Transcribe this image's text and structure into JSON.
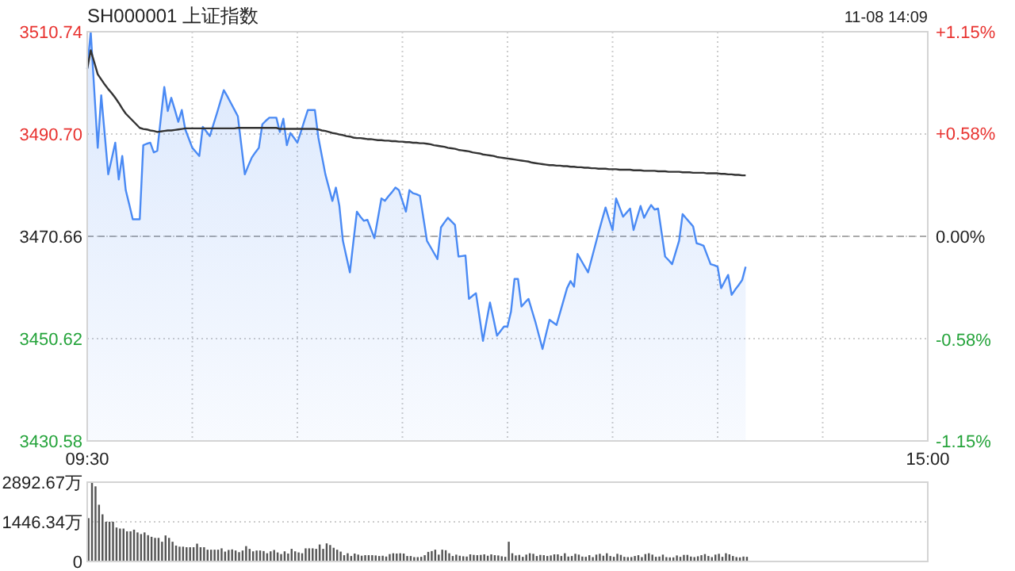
{
  "chart_data": [
    {
      "type": "area",
      "title": "SH000001 上证指数",
      "subtitle": "11-08 14:09",
      "grid": true,
      "categories": [
        "09:30",
        null,
        null,
        null,
        null,
        null,
        null,
        null,
        null,
        null,
        null,
        null,
        null,
        null,
        null,
        null,
        null,
        null,
        null,
        null,
        null,
        null,
        null,
        null,
        null,
        null,
        null,
        null,
        null,
        null,
        null,
        null,
        null,
        null,
        null,
        null,
        null,
        null,
        null,
        null,
        null,
        null,
        null,
        null,
        null,
        null,
        null,
        null,
        null,
        null,
        null,
        null,
        null,
        null,
        null,
        null,
        null,
        null,
        null,
        null,
        null,
        null,
        null,
        null,
        null,
        null,
        null,
        null,
        null,
        null,
        null,
        null,
        null,
        null,
        null,
        null,
        null,
        null,
        null,
        null,
        null,
        null,
        null,
        null,
        null,
        null,
        null,
        null,
        null,
        null,
        null,
        null,
        null,
        null,
        null,
        null,
        null,
        null,
        null,
        null,
        null,
        null,
        null,
        null,
        null,
        null,
        null,
        null,
        null,
        null,
        null,
        null,
        null,
        null,
        null,
        null,
        null,
        null,
        null,
        null,
        null,
        null,
        null,
        null,
        null,
        null,
        null,
        null,
        null,
        null,
        null,
        null,
        null,
        null,
        null,
        null,
        null,
        null,
        null,
        null,
        null,
        null,
        null,
        null,
        null,
        null,
        null,
        null,
        null,
        null,
        null,
        null,
        null,
        null,
        null,
        null,
        null,
        null,
        null,
        null,
        null,
        null,
        null,
        null,
        null,
        null,
        null,
        null,
        null,
        null,
        null,
        null,
        null,
        null,
        null,
        null,
        null,
        null,
        null,
        null,
        null,
        null,
        null,
        null,
        null,
        null,
        null,
        null,
        null,
        null,
        null,
        null,
        null,
        null,
        null,
        null,
        null,
        null,
        null,
        null,
        null,
        null,
        null,
        null,
        null,
        null,
        null,
        null,
        null,
        null,
        null,
        null,
        null,
        null,
        null,
        null,
        null,
        null,
        null,
        null,
        null,
        null,
        null,
        null,
        null,
        null,
        null,
        null,
        null,
        null,
        null,
        null,
        null,
        null,
        null,
        null,
        null,
        null,
        null,
        null,
        "15:00"
      ],
      "ylim": [
        3430.58,
        3510.74
      ],
      "yticks": [
        {
          "value": 3430.58,
          "label": "3430.58"
        },
        {
          "value": 3450.62,
          "label": "3450.62"
        },
        {
          "value": 3470.66,
          "label": "3470.66"
        },
        {
          "value": 3490.7,
          "label": "3490.70"
        },
        {
          "value": 3510.74,
          "label": "3510.74"
        }
      ],
      "y2lim": [
        -1.15,
        1.15
      ],
      "y2ticks": [
        {
          "value": -1.15,
          "label": "-1.15%"
        },
        {
          "value": -0.58,
          "label": "-0.58%"
        },
        {
          "value": 0,
          "label": "0.00%"
        },
        {
          "value": 0.58,
          "label": "+0.58%"
        },
        {
          "value": 1.15,
          "label": "+1.15%"
        }
      ],
      "ref_lines": [
        {
          "axis": "y",
          "value": 3470.66,
          "color": "#aaaaaa",
          "line_style": "dashed"
        }
      ],
      "series": [
        {
          "color": "#4a8af4",
          "values": [
            3503.5,
            3510.7,
            3499.4,
            3488.0,
            3498.3,
            3490.6,
            3482.8,
            3485.9,
            3489.0,
            3481.8,
            3486.4,
            3479.7,
            3476.9,
            3474.0,
            3474.0,
            3474.0,
            3488.5,
            3488.8,
            3489.0,
            3487.1,
            3487.4,
            3493.7,
            3499.9,
            3495.2,
            3497.8,
            3495.5,
            3493.1,
            3495.4,
            3491.6,
            3489.8,
            3488.0,
            3487.2,
            3486.4,
            3492.1,
            3491.2,
            3490.3,
            3492.5,
            3494.7,
            3497.0,
            3499.3,
            3498.1,
            3496.8,
            3495.5,
            3494.2,
            3488.5,
            3482.8,
            3484.5,
            3486.1,
            3487.1,
            3488.0,
            3492.6,
            3493.3,
            3493.9,
            3493.9,
            3493.9,
            3491.1,
            3493.7,
            3488.5,
            3490.9,
            3490.0,
            3489.0,
            3491.1,
            3493.3,
            3495.4,
            3495.4,
            3495.4,
            3490.0,
            3486.4,
            3482.8,
            3480.2,
            3477.6,
            3480.2,
            3476.6,
            3469.8,
            3466.7,
            3463.6,
            3469.6,
            3475.5,
            3474.5,
            3473.7,
            3473.9,
            3472.1,
            3470.3,
            3474.2,
            3478.1,
            3477.6,
            3478.5,
            3479.3,
            3480.2,
            3479.7,
            3477.6,
            3475.5,
            3479.7,
            3479.1,
            3478.9,
            3478.6,
            3474.2,
            3469.8,
            3468.6,
            3467.4,
            3466.2,
            3472.4,
            3473.4,
            3474.3,
            3473.6,
            3472.9,
            3466.7,
            3466.8,
            3466.9,
            3458.4,
            3459.0,
            3459.5,
            3454.9,
            3450.2,
            3454.0,
            3457.7,
            3454.5,
            3451.2,
            3452.1,
            3453.0,
            3453.0,
            3455.9,
            3462.3,
            3462.3,
            3456.9,
            3457.7,
            3458.4,
            3456.1,
            3453.8,
            3451.2,
            3448.6,
            3451.5,
            3454.3,
            3453.8,
            3453.3,
            3455.7,
            3458.1,
            3460.5,
            3461.9,
            3460.8,
            3467.2,
            3466.0,
            3464.8,
            3463.6,
            3466.2,
            3468.8,
            3471.4,
            3473.9,
            3476.3,
            3474.0,
            3471.9,
            3478.1,
            3476.3,
            3474.5,
            3475.3,
            3476.1,
            3471.9,
            3474.3,
            3476.6,
            3474.3,
            3475.6,
            3476.8,
            3475.9,
            3476.1,
            3471.4,
            3466.7,
            3466.0,
            3465.2,
            3467.5,
            3469.8,
            3475.0,
            3474.2,
            3473.4,
            3472.6,
            3469.3,
            3469.1,
            3468.8,
            3467.0,
            3465.2,
            3465.0,
            3464.7,
            3460.5,
            3461.8,
            3463.1,
            3459.2,
            3460.2,
            3461.1,
            3462.1,
            3464.7,
            null,
            null,
            null,
            null,
            null,
            null,
            null,
            null,
            null,
            null,
            null,
            null,
            null,
            null,
            null,
            null,
            null,
            null,
            null,
            null,
            null,
            null,
            null,
            null,
            null,
            null,
            null,
            null,
            null,
            null,
            null,
            null,
            null,
            null,
            null,
            null,
            null,
            null,
            null,
            null,
            null,
            null,
            null,
            null,
            null,
            null,
            null,
            null,
            null,
            null,
            null,
            null
          ]
        },
        {
          "type": "line",
          "color": "#333333",
          "values": [
            3503.5,
            3507.1,
            3504.8,
            3502.4,
            3501.4,
            3500.4,
            3499.5,
            3498.7,
            3497.8,
            3496.8,
            3495.7,
            3494.7,
            3494.0,
            3493.3,
            3492.6,
            3491.9,
            3491.7,
            3491.6,
            3491.4,
            3491.3,
            3491.1,
            3491.2,
            3491.3,
            3491.4,
            3491.4,
            3491.5,
            3491.6,
            3491.7,
            3491.8,
            3491.8,
            3491.8,
            3491.8,
            3491.8,
            3491.8,
            3491.8,
            3491.8,
            3491.8,
            3491.8,
            3491.8,
            3491.8,
            3491.8,
            3491.8,
            3491.8,
            3491.9,
            3491.9,
            3491.9,
            3491.9,
            3491.9,
            3491.9,
            3491.9,
            3491.9,
            3491.9,
            3491.9,
            3491.9,
            3491.9,
            3491.7,
            3491.7,
            3491.7,
            3491.7,
            3491.7,
            3491.7,
            3491.7,
            3491.7,
            3491.7,
            3491.7,
            3491.7,
            3491.6,
            3491.4,
            3491.3,
            3491.1,
            3490.9,
            3490.8,
            3490.6,
            3490.5,
            3490.3,
            3490.2,
            3490.0,
            3489.9,
            3489.9,
            3489.8,
            3489.7,
            3489.7,
            3489.6,
            3489.5,
            3489.5,
            3489.4,
            3489.4,
            3489.3,
            3489.3,
            3489.2,
            3489.2,
            3489.1,
            3489.1,
            3489.0,
            3489.0,
            3488.9,
            3488.9,
            3488.8,
            3488.7,
            3488.5,
            3488.4,
            3488.3,
            3488.2,
            3488.0,
            3487.9,
            3487.8,
            3487.6,
            3487.5,
            3487.4,
            3487.3,
            3487.1,
            3487.0,
            3486.9,
            3486.7,
            3486.6,
            3486.5,
            3486.4,
            3486.2,
            3486.1,
            3486.0,
            3485.9,
            3485.8,
            3485.7,
            3485.6,
            3485.5,
            3485.4,
            3485.3,
            3485.1,
            3485.0,
            3484.9,
            3484.8,
            3484.7,
            3484.6,
            3484.6,
            3484.5,
            3484.5,
            3484.4,
            3484.4,
            3484.3,
            3484.3,
            3484.2,
            3484.2,
            3484.1,
            3484.1,
            3484.0,
            3484.0,
            3483.9,
            3483.9,
            3483.9,
            3483.8,
            3483.8,
            3483.8,
            3483.7,
            3483.7,
            3483.7,
            3483.7,
            3483.6,
            3483.6,
            3483.6,
            3483.5,
            3483.5,
            3483.5,
            3483.5,
            3483.4,
            3483.4,
            3483.4,
            3483.3,
            3483.3,
            3483.3,
            3483.3,
            3483.2,
            3483.2,
            3483.2,
            3483.1,
            3483.1,
            3483.1,
            3483.1,
            3483.0,
            3483.0,
            3483.0,
            3483.0,
            3482.9,
            3482.9,
            3482.8,
            3482.8,
            3482.7,
            3482.7,
            3482.6,
            3482.6,
            null,
            null,
            null,
            null,
            null,
            null,
            null,
            null,
            null,
            null,
            null,
            null,
            null,
            null,
            null,
            null,
            null,
            null,
            null,
            null,
            null,
            null,
            null,
            null,
            null,
            null,
            null,
            null,
            null,
            null,
            null,
            null,
            null,
            null,
            null,
            null,
            null,
            null,
            null,
            null,
            null,
            null,
            null,
            null,
            null,
            null,
            null,
            null,
            null,
            null,
            null,
            null
          ]
        }
      ]
    },
    {
      "type": "bar",
      "color": "#555555",
      "grid": "y",
      "tick_labels": "y",
      "categories": [
        null,
        null,
        null,
        null,
        null,
        null,
        null,
        null,
        null,
        null,
        null,
        null,
        null,
        null,
        null,
        null,
        null,
        null,
        null,
        null,
        null,
        null,
        null,
        null,
        null,
        null,
        null,
        null,
        null,
        null,
        null,
        null,
        null,
        null,
        null,
        null,
        null,
        null,
        null,
        null,
        null,
        null,
        null,
        null,
        null,
        null,
        null,
        null,
        null,
        null,
        null,
        null,
        null,
        null,
        null,
        null,
        null,
        null,
        null,
        null,
        null,
        null,
        null,
        null,
        null,
        null,
        null,
        null,
        null,
        null,
        null,
        null,
        null,
        null,
        null,
        null,
        null,
        null,
        null,
        null,
        null,
        null,
        null,
        null,
        null,
        null,
        null,
        null,
        null,
        null,
        null,
        null,
        null,
        null,
        null,
        null,
        null,
        null,
        null,
        null,
        null,
        null,
        null,
        null,
        null,
        null,
        null,
        null,
        null,
        null,
        null,
        null,
        null,
        null,
        null,
        null,
        null,
        null,
        null,
        null,
        null,
        null,
        null,
        null,
        null,
        null,
        null,
        null,
        null,
        null,
        null,
        null,
        null,
        null,
        null,
        null,
        null,
        null,
        null,
        null,
        null,
        null,
        null,
        null,
        null,
        null,
        null,
        null,
        null,
        null,
        null,
        null,
        null,
        null,
        null,
        null,
        null,
        null,
        null,
        null,
        null,
        null,
        null,
        null,
        null,
        null,
        null,
        null,
        null,
        null,
        null,
        null,
        null,
        null,
        null,
        null,
        null,
        null,
        null,
        null,
        null,
        null,
        null,
        null,
        null,
        null,
        null,
        null,
        null,
        null,
        null,
        null,
        null,
        null,
        null,
        null,
        null,
        null,
        null,
        null,
        null,
        null,
        null,
        null,
        null,
        null,
        null,
        null,
        null,
        null,
        null,
        null,
        null,
        null,
        null,
        null,
        null,
        null,
        null,
        null,
        null,
        null,
        null,
        null,
        null,
        null,
        null,
        null,
        null,
        null,
        null,
        null,
        null,
        null,
        null,
        null,
        null,
        null,
        null,
        null,
        null
      ],
      "ylim": [
        0,
        2892.67
      ],
      "yticks": [
        0,
        {
          "value": 1446.34,
          "label": "1446.34万"
        },
        {
          "value": 2892.67,
          "label": "2892.67万"
        }
      ],
      "values": [
        1580,
        2890,
        2740,
        2070,
        1720,
        1450,
        1450,
        1450,
        1240,
        1200,
        1200,
        1100,
        1100,
        1160,
        1060,
        1000,
        1060,
        960,
        900,
        860,
        860,
        720,
        950,
        860,
        720,
        580,
        540,
        540,
        520,
        520,
        520,
        650,
        520,
        520,
        430,
        430,
        430,
        430,
        480,
        360,
        420,
        440,
        400,
        340,
        400,
        560,
        460,
        370,
        400,
        400,
        380,
        300,
        370,
        420,
        330,
        270,
        370,
        290,
        460,
        370,
        330,
        300,
        480,
        480,
        480,
        460,
        620,
        460,
        660,
        600,
        500,
        430,
        360,
        230,
        300,
        200,
        290,
        250,
        210,
        230,
        230,
        230,
        220,
        200,
        210,
        180,
        270,
        300,
        290,
        300,
        290,
        200,
        200,
        160,
        160,
        170,
        230,
        350,
        380,
        430,
        250,
        430,
        410,
        300,
        200,
        250,
        210,
        190,
        180,
        260,
        240,
        230,
        240,
        260,
        210,
        260,
        230,
        220,
        190,
        170,
        720,
        300,
        220,
        240,
        170,
        250,
        300,
        280,
        200,
        240,
        230,
        200,
        220,
        260,
        260,
        200,
        300,
        180,
        200,
        280,
        250,
        180,
        170,
        230,
        160,
        250,
        280,
        210,
        300,
        200,
        170,
        280,
        240,
        170,
        160,
        160,
        200,
        230,
        160,
        270,
        300,
        250,
        170,
        180,
        250,
        160,
        150,
        150,
        220,
        170,
        240,
        240,
        180,
        160,
        190,
        230,
        270,
        200,
        160,
        250,
        280,
        170,
        300,
        260,
        200,
        160,
        150,
        180,
        170,
        null,
        null,
        null,
        null,
        null,
        null,
        null,
        null,
        null,
        null,
        null,
        null,
        null,
        null,
        null,
        null,
        null,
        null,
        null,
        null,
        null,
        null,
        null,
        null,
        null,
        null,
        null,
        null,
        null,
        null,
        null,
        null,
        null,
        null,
        null,
        null,
        null,
        null,
        null,
        null,
        null,
        null,
        null,
        null,
        null,
        null,
        null,
        null,
        null,
        null,
        null,
        null
      ]
    }
  ]
}
